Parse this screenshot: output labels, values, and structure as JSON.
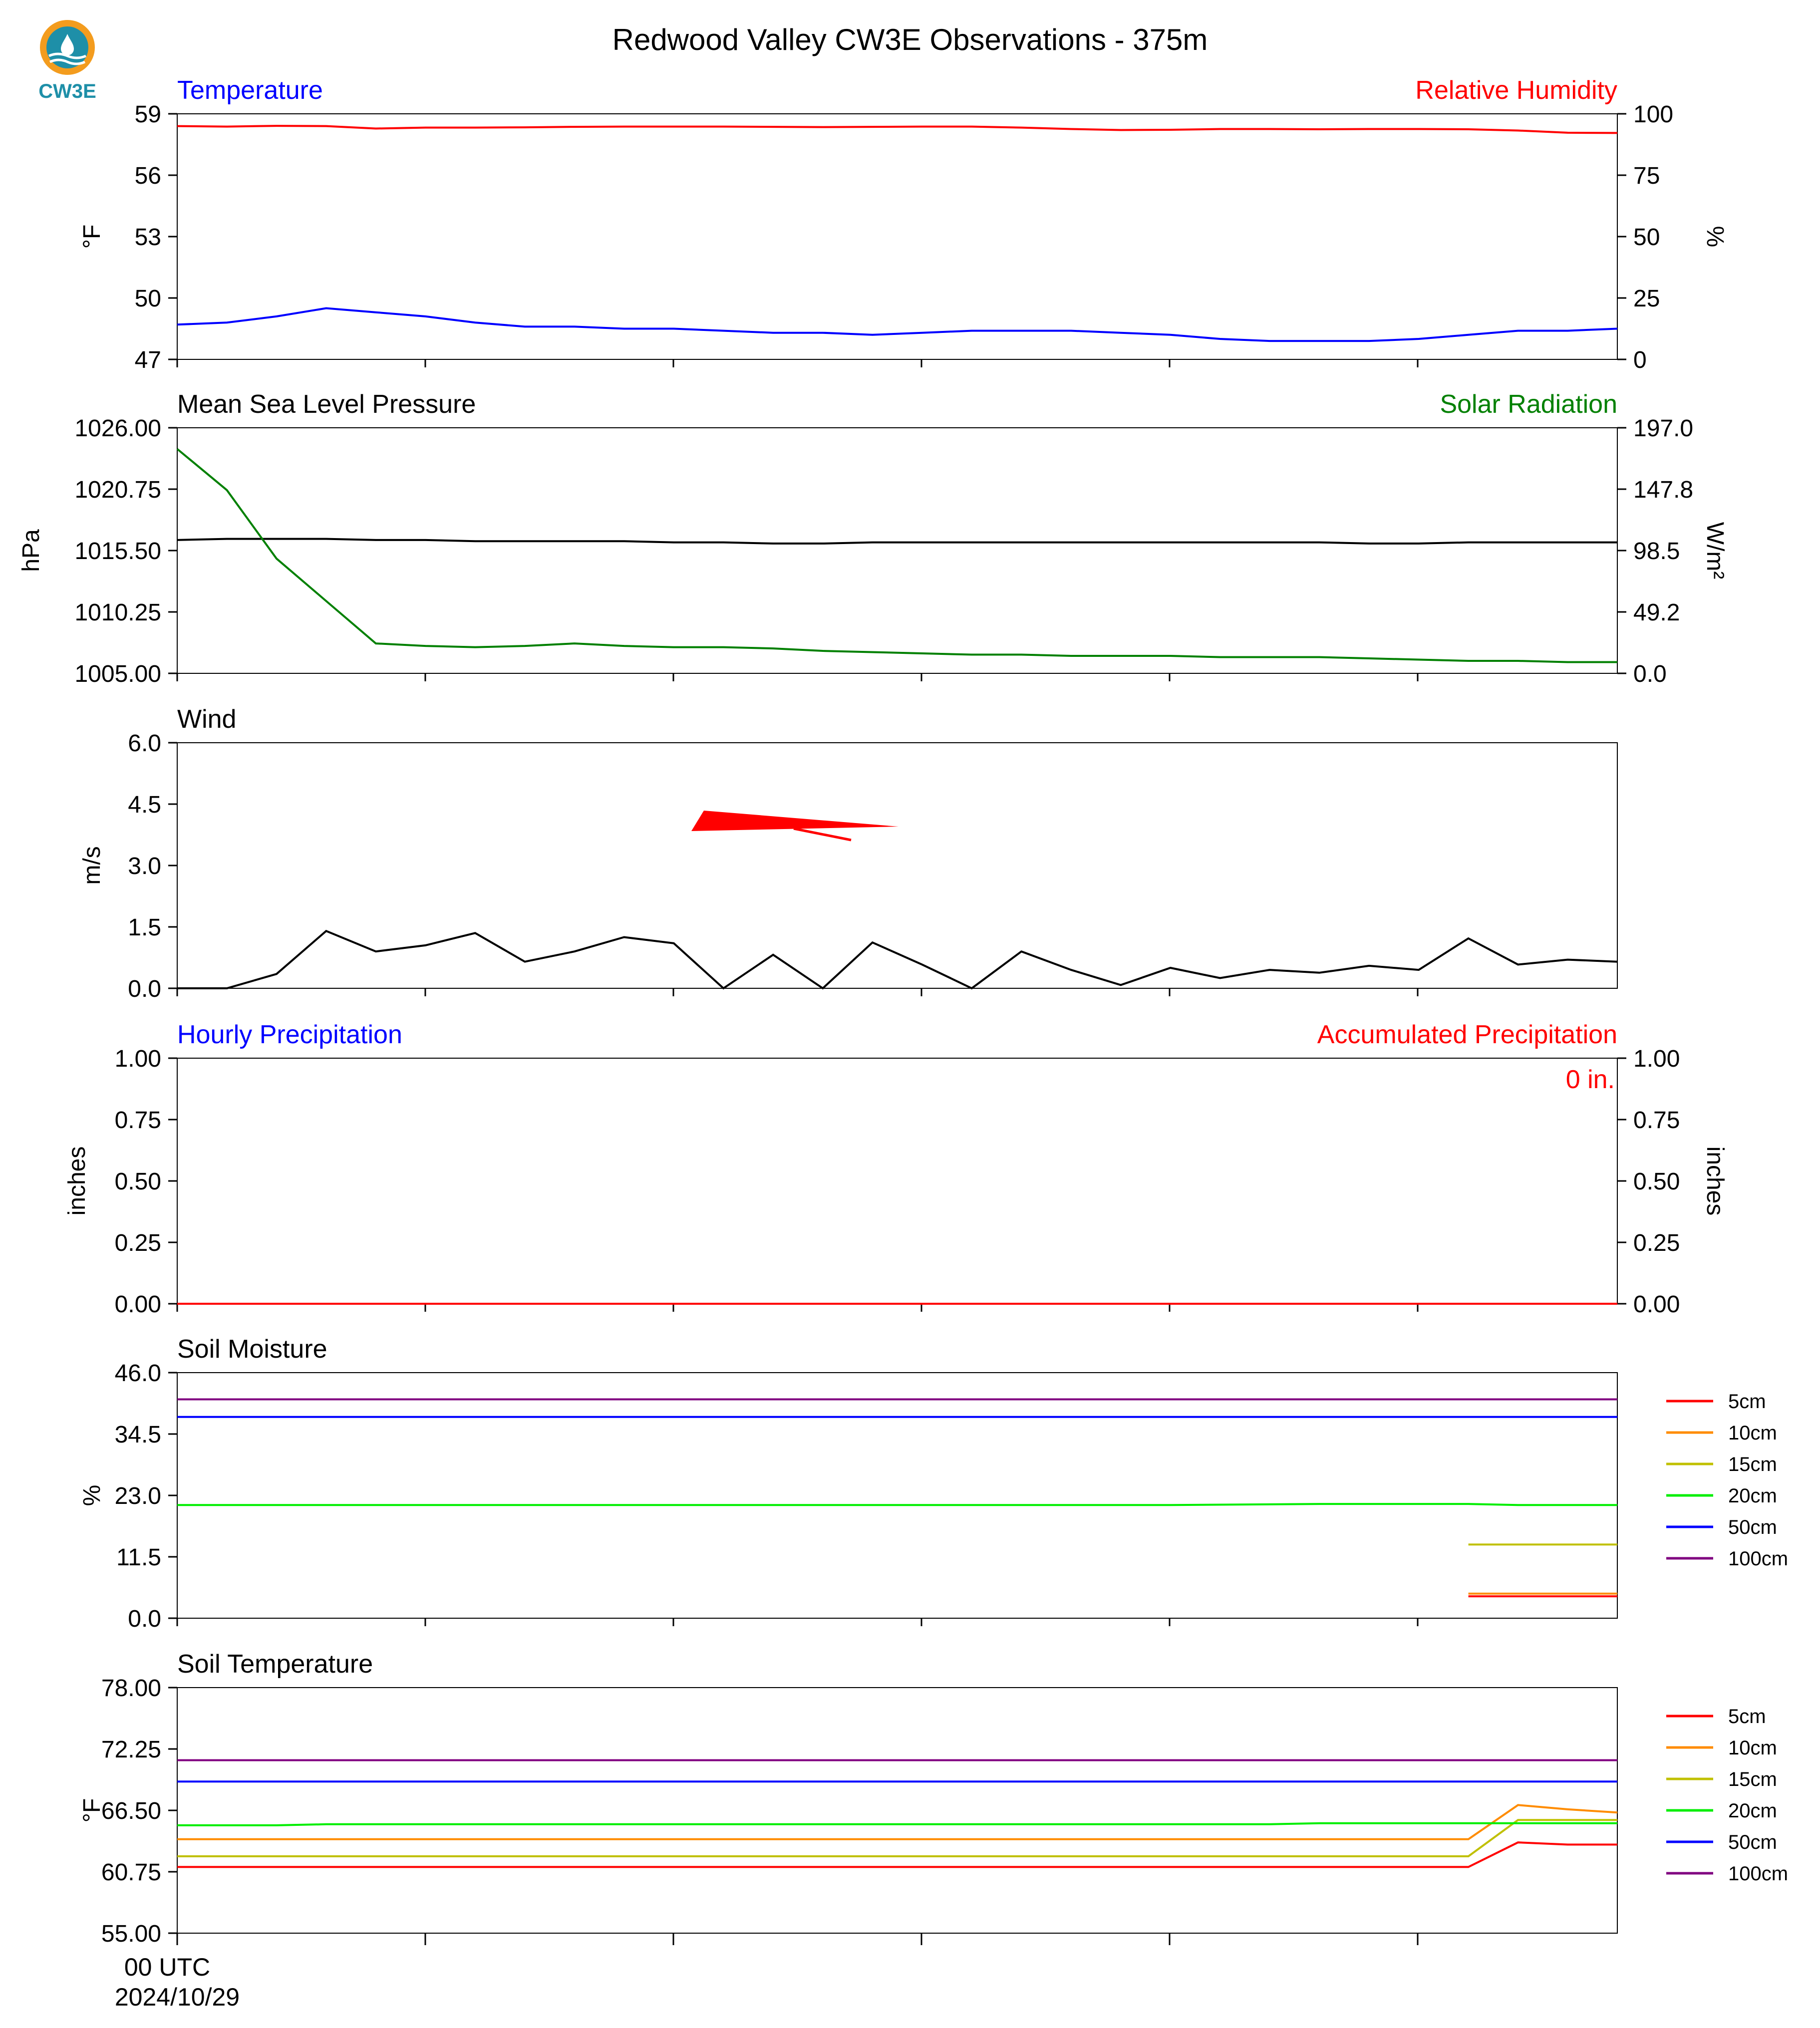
{
  "title": "Redwood Valley CW3E Observations - 375m",
  "logo_text": "CW3E",
  "colors": {
    "red": "#ff0000",
    "blue": "#0000ff",
    "green": "#008000",
    "black": "#000000",
    "orange": "#ff8c00",
    "olive": "#c0c000",
    "lime": "#00ee00",
    "purple": "#800080",
    "teal": "#1e8fa8"
  },
  "x_axis": {
    "ticks": [
      "00 UTC",
      "",
      "",
      "",
      "",
      ""
    ],
    "tick_sub": [
      "2024/10/29",
      "",
      "",
      "",
      "",
      ""
    ]
  },
  "chart_data": [
    {
      "type": "line",
      "title_left": "Temperature",
      "title_right": "Relative Humidity",
      "ylabel": "°F",
      "ylim": [
        47,
        59
      ],
      "yticks": [
        "59",
        "56",
        "53",
        "50",
        "47"
      ],
      "y2label": "%",
      "y2lim": [
        0,
        100
      ],
      "y2ticks": [
        "100",
        "75",
        "50",
        "25",
        "0"
      ],
      "series": [
        {
          "name": "Temperature",
          "axis": "left",
          "color": "#0000ff",
          "x": [
            0,
            1,
            2,
            3,
            4,
            5,
            6,
            7,
            8,
            9,
            10,
            11,
            12,
            13,
            14,
            15,
            16,
            17,
            18,
            19,
            20,
            21,
            22,
            23,
            24,
            25,
            26,
            27,
            28,
            29
          ],
          "values": [
            48.7,
            48.8,
            49.1,
            49.5,
            49.3,
            49.1,
            48.8,
            48.6,
            48.6,
            48.5,
            48.5,
            48.4,
            48.3,
            48.3,
            48.2,
            48.3,
            48.4,
            48.4,
            48.4,
            48.3,
            48.2,
            48.0,
            47.9,
            47.9,
            47.9,
            48.0,
            48.2,
            48.4,
            48.4,
            48.5
          ]
        },
        {
          "name": "Relative Humidity",
          "axis": "right",
          "color": "#ff0000",
          "x": [
            0,
            1,
            2,
            3,
            4,
            5,
            6,
            7,
            8,
            9,
            10,
            11,
            12,
            13,
            14,
            15,
            16,
            17,
            18,
            19,
            20,
            21,
            22,
            23,
            24,
            25,
            26,
            27,
            28,
            29
          ],
          "values": [
            95.0,
            94.8,
            95.1,
            95.0,
            94.0,
            94.4,
            94.4,
            94.5,
            94.7,
            94.8,
            94.8,
            94.8,
            94.7,
            94.6,
            94.7,
            94.8,
            94.8,
            94.4,
            93.8,
            93.4,
            93.5,
            93.8,
            93.8,
            93.7,
            93.8,
            93.8,
            93.7,
            93.2,
            92.3,
            92.2
          ]
        }
      ]
    },
    {
      "type": "line",
      "title_left": "Mean Sea Level Pressure",
      "title_right": "Solar Radiation",
      "ylabel": "hPa",
      "ylim": [
        1005.0,
        1026.0
      ],
      "yticks": [
        "1026.00",
        "1020.75",
        "1015.50",
        "1010.25",
        "1005.00"
      ],
      "y2label": "W/m²",
      "y2lim": [
        0.0,
        197.0
      ],
      "y2ticks": [
        "197.0",
        "147.8",
        "98.5",
        "49.2",
        "0.0"
      ],
      "series": [
        {
          "name": "Mean Sea Level Pressure",
          "axis": "left",
          "color": "#000000",
          "x": [
            0,
            1,
            2,
            3,
            4,
            5,
            6,
            7,
            8,
            9,
            10,
            11,
            12,
            13,
            14,
            15,
            16,
            17,
            18,
            19,
            20,
            21,
            22,
            23,
            24,
            25,
            26,
            27,
            28,
            29
          ],
          "values": [
            1016.4,
            1016.5,
            1016.5,
            1016.5,
            1016.4,
            1016.4,
            1016.3,
            1016.3,
            1016.3,
            1016.3,
            1016.2,
            1016.2,
            1016.1,
            1016.1,
            1016.2,
            1016.2,
            1016.2,
            1016.2,
            1016.2,
            1016.2,
            1016.2,
            1016.2,
            1016.2,
            1016.2,
            1016.1,
            1016.1,
            1016.2,
            1016.2,
            1016.2,
            1016.2
          ]
        },
        {
          "name": "Solar Radiation",
          "axis": "right",
          "color": "#008000",
          "x": [
            0,
            1,
            2,
            3,
            4,
            5,
            6,
            7,
            8,
            9,
            10,
            11,
            12,
            13,
            14,
            15,
            16,
            17,
            18,
            19,
            20,
            21,
            22,
            23,
            24,
            25,
            26,
            27,
            28,
            29
          ],
          "values": [
            180,
            147,
            92,
            58,
            24,
            22,
            21,
            22,
            24,
            22,
            21,
            21,
            20,
            18,
            17,
            16,
            15,
            15,
            14,
            14,
            14,
            13,
            13,
            13,
            12,
            11,
            10,
            10,
            9,
            9
          ]
        }
      ]
    },
    {
      "type": "line",
      "title_left": "Wind",
      "ylabel": "m/s",
      "ylim": [
        0.0,
        6.0
      ],
      "yticks": [
        "6.0",
        "4.5",
        "3.0",
        "1.5",
        "0.0"
      ],
      "barb": {
        "color": "#ff0000"
      },
      "series": [
        {
          "name": "Wind",
          "axis": "left",
          "color": "#000000",
          "x": [
            0,
            1,
            2,
            3,
            4,
            5,
            6,
            7,
            8,
            9,
            10,
            11,
            12,
            13,
            14,
            15,
            16,
            17,
            18,
            19,
            20,
            21,
            22,
            23,
            24,
            25,
            26,
            27,
            28,
            29
          ],
          "values": [
            0.0,
            0.0,
            0.35,
            1.4,
            0.9,
            1.05,
            1.35,
            0.65,
            0.9,
            1.25,
            1.1,
            0.0,
            0.82,
            0.0,
            1.12,
            0.58,
            0.0,
            0.9,
            0.45,
            0.08,
            0.5,
            0.25,
            0.45,
            0.38,
            0.55,
            0.45,
            1.22,
            0.58,
            0.7,
            0.65
          ]
        }
      ]
    },
    {
      "type": "line",
      "title_left": "Hourly Precipitation",
      "title_right": "Accumulated Precipitation",
      "annotation": "0 in.",
      "ylabel": "inches",
      "ylim": [
        0.0,
        1.0
      ],
      "yticks": [
        "1.00",
        "0.75",
        "0.50",
        "0.25",
        "0.00"
      ],
      "y2label": "inches",
      "y2lim": [
        0.0,
        1.0
      ],
      "y2ticks": [
        "1.00",
        "0.75",
        "0.50",
        "0.25",
        "0.00"
      ],
      "series": [
        {
          "name": "Hourly Precipitation",
          "axis": "left",
          "color": "#0000ff",
          "x": [
            0,
            29
          ],
          "values": [
            0,
            0
          ]
        },
        {
          "name": "Accumulated Precipitation",
          "axis": "right",
          "color": "#ff0000",
          "x": [
            0,
            29
          ],
          "values": [
            0,
            0
          ]
        }
      ]
    },
    {
      "type": "line",
      "title_left": "Soil Moisture",
      "ylabel": "%",
      "ylim": [
        0.0,
        46.0
      ],
      "yticks": [
        "46.0",
        "34.5",
        "23.0",
        "11.5",
        "0.0"
      ],
      "legend": [
        "5cm",
        "10cm",
        "15cm",
        "20cm",
        "50cm",
        "100cm"
      ],
      "series": [
        {
          "name": "5cm",
          "color": "#ff0000",
          "x": [
            26,
            29
          ],
          "values": [
            4.1,
            4.1
          ]
        },
        {
          "name": "10cm",
          "color": "#ff8c00",
          "x": [
            26,
            29
          ],
          "values": [
            4.6,
            4.6
          ]
        },
        {
          "name": "15cm",
          "color": "#c0c000",
          "x": [
            26,
            29
          ],
          "values": [
            13.8,
            13.8
          ]
        },
        {
          "name": "20cm",
          "color": "#00ee00",
          "x": [
            0,
            20,
            23,
            26,
            27,
            29
          ],
          "values": [
            21.2,
            21.2,
            21.4,
            21.4,
            21.2,
            21.2
          ]
        },
        {
          "name": "50cm",
          "color": "#0000ff",
          "x": [
            0,
            29
          ],
          "values": [
            37.7,
            37.7
          ]
        },
        {
          "name": "100cm",
          "color": "#800080",
          "x": [
            0,
            29
          ],
          "values": [
            41.0,
            41.0
          ]
        }
      ]
    },
    {
      "type": "line",
      "title_left": "Soil Temperature",
      "ylabel": "°F",
      "ylim": [
        55.0,
        78.0
      ],
      "yticks": [
        "78.00",
        "72.25",
        "66.50",
        "60.75",
        "55.00"
      ],
      "legend": [
        "5cm",
        "10cm",
        "15cm",
        "20cm",
        "50cm",
        "100cm"
      ],
      "series": [
        {
          "name": "5cm",
          "color": "#ff0000",
          "x": [
            0,
            26,
            27,
            28,
            29
          ],
          "values": [
            61.2,
            61.2,
            63.5,
            63.3,
            63.3
          ]
        },
        {
          "name": "10cm",
          "color": "#ff8c00",
          "x": [
            0,
            26,
            27,
            28,
            29
          ],
          "values": [
            63.8,
            63.8,
            67.0,
            66.6,
            66.3
          ]
        },
        {
          "name": "15cm",
          "color": "#c0c000",
          "x": [
            0,
            26,
            27,
            28,
            29
          ],
          "values": [
            62.2,
            62.2,
            65.6,
            65.6,
            65.6
          ]
        },
        {
          "name": "20cm",
          "color": "#00ee00",
          "x": [
            0,
            2,
            3,
            22,
            23,
            26,
            27,
            29
          ],
          "values": [
            65.1,
            65.1,
            65.2,
            65.2,
            65.3,
            65.3,
            65.3,
            65.3
          ]
        },
        {
          "name": "50cm",
          "color": "#0000ff",
          "x": [
            0,
            29
          ],
          "values": [
            69.2,
            69.2
          ]
        },
        {
          "name": "100cm",
          "color": "#800080",
          "x": [
            0,
            29
          ],
          "values": [
            71.2,
            71.2
          ]
        }
      ]
    }
  ]
}
